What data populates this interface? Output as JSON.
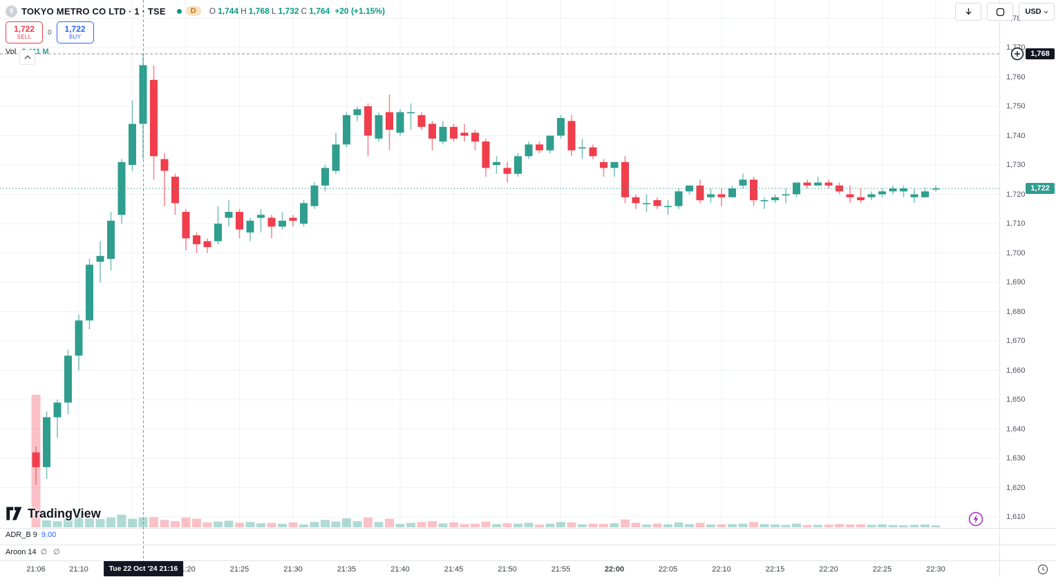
{
  "header": {
    "symbol_avatar": "9",
    "symbol_title": "TOKYO METRO CO LTD · 1 · TSE",
    "interval_badge": "D",
    "ohlc": {
      "o_label": "O",
      "o": "1,744",
      "h_label": "H",
      "h": "1,768",
      "l_label": "L",
      "l": "1,732",
      "c_label": "C",
      "c": "1,764",
      "change": "+20 (+1.15%)"
    },
    "sell_button": {
      "price": "1,722",
      "label": "SELL"
    },
    "spread": "0",
    "buy_button": {
      "price": "1,722",
      "label": "BUY"
    },
    "volume_label": "Vol",
    "volume_value": "2.411 M"
  },
  "toolbar": {
    "currency": "USD"
  },
  "panes": [
    {
      "name": "ADR_B 9",
      "value": "9.00"
    },
    {
      "name": "Aroon 14",
      "value": "∅ ∅"
    }
  ],
  "watermark_logo": "TradingView",
  "colors": {
    "up": "#2f9e8f",
    "down": "#f03e4d",
    "vol_up": "rgba(47,158,143,0.38)",
    "vol_down": "rgba(240,62,77,0.32)",
    "grid": "#eef1f6",
    "crosshair": "#8a8e99",
    "axis_text": "#50535e",
    "last_price": "#2f9e8f"
  },
  "chart_data": {
    "type": "candlestick",
    "symbol": "TOKYO METRO CO LTD",
    "exchange": "TSE",
    "interval_minutes": 1,
    "price_axis": {
      "min": 1610,
      "max": 1780,
      "step": 10
    },
    "current_price": 1722,
    "current_price_label": "1,722",
    "crosshair": {
      "time": "21:16",
      "price": 1768,
      "price_label": "1,768",
      "time_label": "Tue 22 Oct '24  21:16"
    },
    "volume_axis": {
      "max_m": 32.4
    },
    "volume_display": "2.411 M",
    "time_ticks": [
      {
        "text": "21:06",
        "minute": 6,
        "bold": false
      },
      {
        "text": "21:10",
        "minute": 10,
        "bold": false
      },
      {
        "text": "21:20",
        "minute": 20,
        "bold": false
      },
      {
        "text": "21:25",
        "minute": 25,
        "bold": false
      },
      {
        "text": "21:30",
        "minute": 30,
        "bold": false
      },
      {
        "text": "21:35",
        "minute": 35,
        "bold": false
      },
      {
        "text": "21:40",
        "minute": 40,
        "bold": false
      },
      {
        "text": "21:45",
        "minute": 45,
        "bold": false
      },
      {
        "text": "21:50",
        "minute": 50,
        "bold": false
      },
      {
        "text": "21:55",
        "minute": 55,
        "bold": false
      },
      {
        "text": "22:00",
        "minute": 60,
        "bold": true
      },
      {
        "text": "22:05",
        "minute": 65,
        "bold": false
      },
      {
        "text": "22:10",
        "minute": 70,
        "bold": false
      },
      {
        "text": "22:15",
        "minute": 75,
        "bold": false
      },
      {
        "text": "22:20",
        "minute": 80,
        "bold": false
      },
      {
        "text": "22:25",
        "minute": 85,
        "bold": false
      },
      {
        "text": "22:30",
        "minute": 90,
        "bold": false
      }
    ],
    "columns": [
      "time",
      "open",
      "high",
      "low",
      "close",
      "volume_m"
    ],
    "candles": [
      [
        "21:06",
        1632,
        1634,
        1621,
        1627,
        32.4
      ],
      [
        "21:07",
        1627,
        1646,
        1623,
        1644,
        1.7
      ],
      [
        "21:08",
        1644,
        1650,
        1637,
        1649,
        1.5
      ],
      [
        "21:09",
        1649,
        1667,
        1645,
        1665,
        2.0
      ],
      [
        "21:10",
        1665,
        1679,
        1660,
        1677,
        4.2
      ],
      [
        "21:11",
        1677,
        1698,
        1674,
        1696,
        2.2
      ],
      [
        "21:12",
        1697,
        1704,
        1690,
        1699,
        2.0
      ],
      [
        "21:13",
        1698,
        1714,
        1694,
        1711,
        2.4
      ],
      [
        "21:14",
        1713,
        1732,
        1710,
        1731,
        3.1
      ],
      [
        "21:15",
        1730,
        1752,
        1728,
        1744,
        2.1
      ],
      [
        "21:16",
        1744,
        1768,
        1732,
        1764,
        2.411
      ],
      [
        "21:17",
        1759,
        1764,
        1725,
        1733,
        2.5
      ],
      [
        "21:18",
        1732,
        1734,
        1716,
        1728,
        1.8
      ],
      [
        "21:19",
        1726,
        1727,
        1713,
        1717,
        1.5
      ],
      [
        "21:20",
        1714,
        1715,
        1701,
        1705,
        2.4
      ],
      [
        "21:21",
        1706,
        1707,
        1700,
        1703,
        2.1
      ],
      [
        "21:22",
        1704,
        1705,
        1700,
        1702,
        1.2
      ],
      [
        "21:23",
        1704,
        1716,
        1703,
        1710,
        1.4
      ],
      [
        "21:24",
        1712,
        1718,
        1709,
        1714,
        1.6
      ],
      [
        "21:25",
        1714,
        1715,
        1705,
        1708,
        1.1
      ],
      [
        "21:26",
        1707,
        1712,
        1704,
        1711,
        1.3
      ],
      [
        "21:27",
        1712,
        1715,
        1707,
        1713,
        1.0
      ],
      [
        "21:28",
        1712,
        1713,
        1705,
        1709,
        1.1
      ],
      [
        "21:29",
        1709,
        1714,
        1708,
        1711,
        0.85
      ],
      [
        "21:30",
        1712,
        1713,
        1709,
        1711,
        1.2
      ],
      [
        "21:31",
        1710,
        1718,
        1709,
        1717,
        0.7
      ],
      [
        "21:32",
        1716,
        1724,
        1715,
        1723,
        1.3
      ],
      [
        "21:33",
        1723,
        1730,
        1721,
        1729,
        1.8
      ],
      [
        "21:34",
        1728,
        1741,
        1727,
        1737,
        1.4
      ],
      [
        "21:35",
        1737,
        1748,
        1736,
        1747,
        2.2
      ],
      [
        "21:36",
        1747,
        1750,
        1745,
        1749,
        1.5
      ],
      [
        "21:37",
        1750,
        1751,
        1733,
        1740,
        2.4
      ],
      [
        "21:38",
        1739,
        1748,
        1738,
        1747,
        1.3
      ],
      [
        "21:39",
        1748,
        1754,
        1735,
        1742,
        2.1
      ],
      [
        "21:40",
        1741,
        1749,
        1740,
        1748,
        0.85
      ],
      [
        "21:41",
        1748,
        1751,
        1742,
        1748,
        1.1
      ],
      [
        "21:42",
        1747,
        1748,
        1742,
        1743,
        1.3
      ],
      [
        "21:43",
        1744,
        1745,
        1735,
        1739,
        1.5
      ],
      [
        "21:44",
        1738,
        1745,
        1737,
        1743,
        0.95
      ],
      [
        "21:45",
        1743,
        1744,
        1738,
        1739,
        1.2
      ],
      [
        "21:46",
        1741,
        1744,
        1738,
        1740,
        0.8
      ],
      [
        "21:47",
        1741,
        1742,
        1735,
        1738,
        0.9
      ],
      [
        "21:48",
        1738,
        1739,
        1726,
        1729,
        1.4
      ],
      [
        "21:49",
        1730,
        1733,
        1727,
        1731,
        0.8
      ],
      [
        "21:50",
        1729,
        1731,
        1724,
        1727,
        1.0
      ],
      [
        "21:51",
        1727,
        1734,
        1726,
        1733,
        0.9
      ],
      [
        "21:52",
        1733,
        1738,
        1732,
        1737,
        1.1
      ],
      [
        "21:53",
        1737,
        1738,
        1734,
        1735,
        0.65
      ],
      [
        "21:54",
        1735,
        1740,
        1734,
        1740,
        0.9
      ],
      [
        "21:55",
        1740,
        1747,
        1739,
        1746,
        1.3
      ],
      [
        "21:56",
        1745,
        1747,
        1733,
        1735,
        1.2
      ],
      [
        "21:57",
        1736,
        1739,
        1732,
        1736,
        0.75
      ],
      [
        "21:58",
        1736,
        1737,
        1732,
        1733,
        0.9
      ],
      [
        "21:59",
        1731,
        1732,
        1726,
        1729,
        0.85
      ],
      [
        "22:00",
        1729,
        1731,
        1726,
        1731,
        1.0
      ],
      [
        "22:01",
        1731,
        1733,
        1717,
        1719,
        1.9
      ],
      [
        "22:02",
        1719,
        1720,
        1715,
        1717,
        1.1
      ],
      [
        "22:03",
        1717,
        1720,
        1714,
        1717,
        0.7
      ],
      [
        "22:04",
        1718,
        1719,
        1715,
        1716,
        0.9
      ],
      [
        "22:05",
        1716,
        1718,
        1713,
        1716,
        0.75
      ],
      [
        "22:06",
        1716,
        1722,
        1715,
        1721,
        1.2
      ],
      [
        "22:07",
        1721,
        1723,
        1720,
        1723,
        0.8
      ],
      [
        "22:08",
        1723,
        1725,
        1717,
        1718,
        1.1
      ],
      [
        "22:09",
        1719,
        1722,
        1717,
        1720,
        0.7
      ],
      [
        "22:10",
        1720,
        1722,
        1716,
        1719,
        0.75
      ],
      [
        "22:11",
        1719,
        1723,
        1719,
        1722,
        0.8
      ],
      [
        "22:12",
        1723,
        1727,
        1722,
        1725,
        0.9
      ],
      [
        "22:13",
        1725,
        1726,
        1716,
        1718,
        1.3
      ],
      [
        "22:14",
        1718,
        1719,
        1715,
        1718,
        0.8
      ],
      [
        "22:15",
        1718,
        1720,
        1717,
        1719,
        0.7
      ],
      [
        "22:16",
        1720,
        1722,
        1717,
        1720,
        0.6
      ],
      [
        "22:17",
        1720,
        1724,
        1719,
        1724,
        0.9
      ],
      [
        "22:18",
        1724,
        1725,
        1722,
        1723,
        0.55
      ],
      [
        "22:19",
        1723,
        1726,
        1723,
        1724,
        0.6
      ],
      [
        "22:20",
        1724,
        1725,
        1722,
        1723,
        0.65
      ],
      [
        "22:21",
        1723,
        1724,
        1720,
        1721,
        0.8
      ],
      [
        "22:22",
        1720,
        1723,
        1717,
        1719,
        0.7
      ],
      [
        "22:23",
        1719,
        1722,
        1717,
        1718,
        0.75
      ],
      [
        "22:24",
        1719,
        1721,
        1718,
        1720,
        0.6
      ],
      [
        "22:25",
        1720,
        1722,
        1719,
        1721,
        0.7
      ],
      [
        "22:26",
        1721,
        1723,
        1720,
        1722,
        0.55
      ],
      [
        "22:27",
        1721,
        1723,
        1719,
        1722,
        0.5
      ],
      [
        "22:28",
        1719,
        1722,
        1717,
        1720,
        0.6
      ],
      [
        "22:29",
        1719,
        1722,
        1719,
        1721,
        0.7
      ],
      [
        "22:30",
        1722,
        1723,
        1721,
        1722,
        0.45
      ]
    ]
  }
}
